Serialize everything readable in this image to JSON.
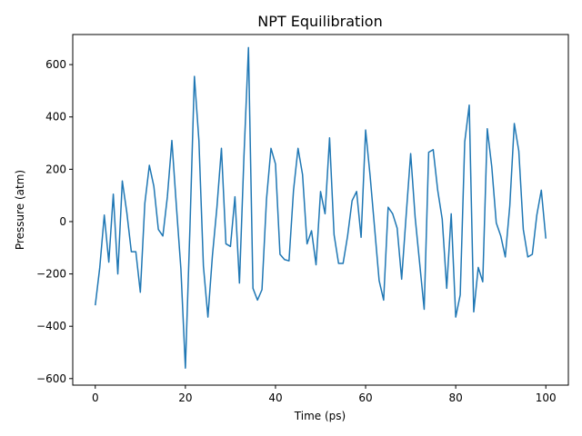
{
  "chart_data": {
    "type": "line",
    "title": "NPT Equilibration",
    "xlabel": "Time (ps)",
    "ylabel": "Pressure (atm)",
    "xlim": [
      -5,
      105
    ],
    "ylim": [
      -625,
      715
    ],
    "xticks": [
      0,
      20,
      40,
      60,
      80,
      100
    ],
    "yticks": [
      -600,
      -400,
      -200,
      0,
      200,
      400,
      600
    ],
    "grid": false,
    "series": [
      {
        "color": "#1f77b4",
        "x": [
          0,
          1,
          2,
          3,
          4,
          5,
          6,
          7,
          8,
          9,
          10,
          11,
          12,
          13,
          14,
          15,
          16,
          17,
          18,
          19,
          20,
          21,
          22,
          23,
          24,
          25,
          26,
          27,
          28,
          29,
          30,
          31,
          32,
          33,
          34,
          35,
          36,
          37,
          38,
          39,
          40,
          41,
          42,
          43,
          44,
          45,
          46,
          47,
          48,
          49,
          50,
          51,
          52,
          53,
          54,
          55,
          56,
          57,
          58,
          59,
          60,
          61,
          62,
          63,
          64,
          65,
          66,
          67,
          68,
          69,
          70,
          71,
          72,
          73,
          74,
          75,
          76,
          77,
          78,
          79,
          80,
          81,
          82,
          83,
          84,
          85,
          86,
          87,
          88,
          89,
          90,
          91,
          92,
          93,
          94,
          95,
          96,
          97,
          98,
          99,
          100
        ],
        "y": [
          -320,
          -175,
          25,
          -155,
          105,
          -200,
          155,
          35,
          -115,
          -115,
          -270,
          70,
          215,
          135,
          -30,
          -55,
          95,
          310,
          60,
          -180,
          -560,
          -30,
          555,
          310,
          -170,
          -365,
          -130,
          55,
          280,
          -85,
          -95,
          95,
          -235,
          250,
          665,
          -255,
          -300,
          -260,
          85,
          280,
          220,
          -125,
          -145,
          -150,
          120,
          280,
          180,
          -85,
          -35,
          -165,
          115,
          30,
          320,
          -50,
          -160,
          -160,
          -55,
          80,
          115,
          -60,
          350,
          175,
          -25,
          -225,
          -300,
          55,
          30,
          -25,
          -220,
          25,
          260,
          15,
          -160,
          -335,
          265,
          275,
          120,
          10,
          -255,
          30,
          -365,
          -280,
          305,
          445,
          -345,
          -175,
          -230,
          355,
          210,
          -5,
          -55,
          -135,
          60,
          375,
          270,
          -30,
          -135,
          -125,
          25,
          120,
          -65
        ]
      }
    ]
  }
}
